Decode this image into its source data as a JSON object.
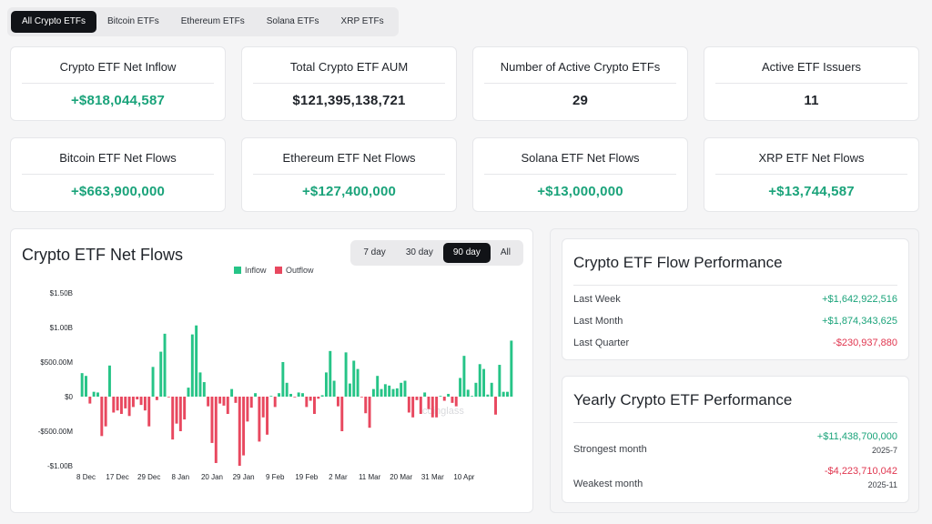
{
  "tabs": [
    "All Crypto ETFs",
    "Bitcoin ETFs",
    "Ethereum ETFs",
    "Solana ETFs",
    "XRP ETFs"
  ],
  "active_tab": 0,
  "stats": [
    {
      "title": "Crypto ETF Net Inflow",
      "value": "+$818,044,587",
      "tone": "pos"
    },
    {
      "title": "Total Crypto ETF AUM",
      "value": "$121,395,138,721",
      "tone": "neutral"
    },
    {
      "title": "Number of Active Crypto ETFs",
      "value": "29",
      "tone": "neutral"
    },
    {
      "title": "Active ETF Issuers",
      "value": "11",
      "tone": "neutral"
    },
    {
      "title": "Bitcoin ETF Net Flows",
      "value": "+$663,900,000",
      "tone": "pos"
    },
    {
      "title": "Ethereum ETF Net Flows",
      "value": "+$127,400,000",
      "tone": "pos"
    },
    {
      "title": "Solana ETF Net Flows",
      "value": "+$13,000,000",
      "tone": "pos"
    },
    {
      "title": "XRP ETF Net Flows",
      "value": "+$13,744,587",
      "tone": "pos"
    }
  ],
  "flows_chart": {
    "title": "Crypto ETF Net Flows",
    "ranges": [
      "7 day",
      "30 day",
      "90 day",
      "All"
    ],
    "active_range": 2,
    "watermark": "coinglass"
  },
  "chart_data": {
    "type": "bar",
    "title": "",
    "series": [
      {
        "name": "Inflow",
        "color": "#26c487"
      },
      {
        "name": "Outflow",
        "color": "#e8485f"
      }
    ],
    "legend_position": "top-center",
    "ylim": [
      -1000000000,
      1500000000
    ],
    "y_ticks": [
      {
        "value": 1500000000,
        "label": "$1.50B"
      },
      {
        "value": 1000000000,
        "label": "$1.00B"
      },
      {
        "value": 500000000,
        "label": "$500.00M"
      },
      {
        "value": 0,
        "label": "$0"
      },
      {
        "value": -500000000,
        "label": "-$500.00M"
      },
      {
        "value": -1000000000,
        "label": "-$1.00B"
      }
    ],
    "x_tick_labels": [
      "8 Dec",
      "17 Dec",
      "29 Dec",
      "8 Jan",
      "20 Jan",
      "29 Jan",
      "9 Feb",
      "19 Feb",
      "2 Mar",
      "11 Mar",
      "20 Mar",
      "31 Mar",
      "10 Apr"
    ],
    "x_tick_index": [
      1,
      9,
      17,
      25,
      33,
      41,
      49,
      57,
      65,
      73,
      81,
      89,
      97
    ],
    "values_musd": [
      340,
      300,
      -100,
      70,
      60,
      -570,
      -430,
      450,
      -230,
      -200,
      -250,
      -170,
      -280,
      -150,
      -40,
      -120,
      -200,
      -430,
      430,
      -50,
      650,
      910,
      -10,
      -620,
      -390,
      -500,
      -330,
      130,
      900,
      1030,
      350,
      210,
      -140,
      -670,
      -960,
      -100,
      -130,
      -250,
      110,
      -90,
      -1000,
      -850,
      -360,
      -160,
      50,
      -650,
      -300,
      -550,
      10,
      -150,
      50,
      500,
      200,
      40,
      -10,
      60,
      50,
      -150,
      -60,
      -250,
      -30,
      20,
      350,
      660,
      230,
      -140,
      -500,
      640,
      190,
      520,
      400,
      -10,
      -240,
      -450,
      110,
      300,
      110,
      180,
      160,
      110,
      120,
      200,
      230,
      -230,
      -300,
      -50,
      -250,
      60,
      -180,
      -300,
      -300,
      10,
      -60,
      40,
      -90,
      -140,
      270,
      590,
      100,
      10,
      200,
      470,
      400,
      30,
      200,
      -260,
      460,
      70,
      70,
      810
    ]
  },
  "flow_performance": {
    "title": "Crypto ETF Flow Performance",
    "rows": [
      {
        "label": "Last Week",
        "value": "+$1,642,922,516",
        "tone": "pos"
      },
      {
        "label": "Last Month",
        "value": "+$1,874,343,625",
        "tone": "pos"
      },
      {
        "label": "Last Quarter",
        "value": "-$230,937,880",
        "tone": "neg"
      }
    ]
  },
  "yearly_performance": {
    "title": "Yearly Crypto ETF Performance",
    "strongest": {
      "label": "Strongest month",
      "value": "+$11,438,700,000",
      "date": "2025-7",
      "tone": "pos"
    },
    "weakest": {
      "label": "Weakest month",
      "value": "-$4,223,710,042",
      "date": "2025-11",
      "tone": "neg"
    }
  }
}
